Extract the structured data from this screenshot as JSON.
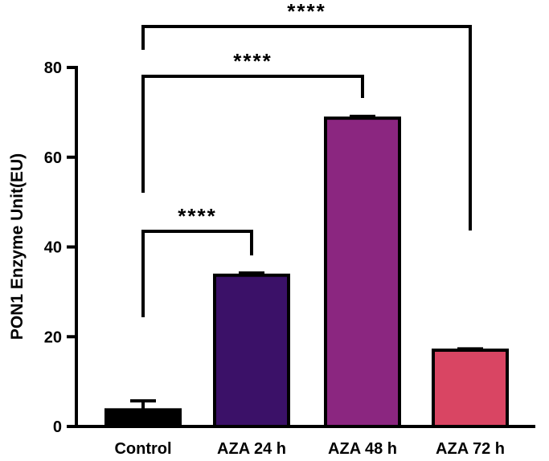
{
  "chart_data": {
    "type": "bar",
    "title": "",
    "xlabel": "",
    "ylabel": "PON1 Enzyme Unit(EU)",
    "ylim": [
      0,
      80
    ],
    "yticks": [
      0,
      20,
      40,
      60,
      80
    ],
    "grid": false,
    "categories": [
      "Control",
      "AZA 24 h",
      "AZA 48 h",
      "AZA 72 h"
    ],
    "values": [
      3.7,
      33.7,
      68.7,
      17.0
    ],
    "errors": [
      2.0,
      0.5,
      0.4,
      0.3
    ],
    "colors": [
      "#000000",
      "#3b1168",
      "#8b2680",
      "#d94563"
    ],
    "significance": [
      {
        "from": "Control",
        "to": "AZA 24 h",
        "label": "****"
      },
      {
        "from": "Control",
        "to": "AZA 48 h",
        "label": "****"
      },
      {
        "from": "Control",
        "to": "AZA 72 h",
        "label": "****"
      }
    ]
  }
}
